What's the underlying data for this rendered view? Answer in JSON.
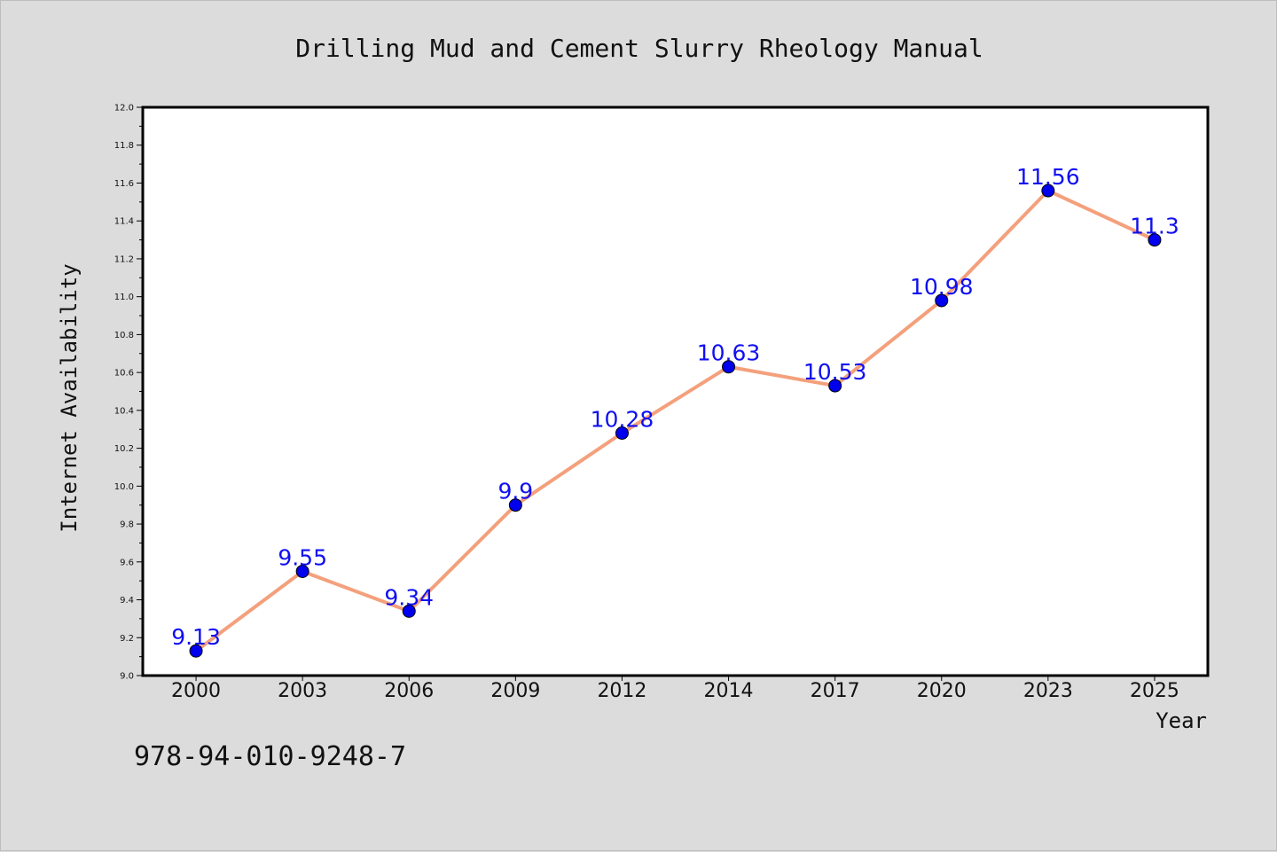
{
  "chart_data": {
    "type": "line",
    "title": "Drilling Mud and Cement Slurry Rheology Manual",
    "xlabel": "Year",
    "ylabel": "Internet Availability",
    "categories": [
      "2000",
      "2003",
      "2006",
      "2009",
      "2012",
      "2014",
      "2017",
      "2020",
      "2023",
      "2025"
    ],
    "series": [
      {
        "values": [
          9.13,
          9.55,
          9.34,
          9.9,
          10.28,
          10.63,
          10.53,
          10.98,
          11.56,
          11.3
        ]
      }
    ],
    "data_labels": [
      "9.13",
      "9.55",
      "9.34",
      "9.9",
      "10.28",
      "10.63",
      "10.53",
      "10.98",
      "11.56",
      "11.3"
    ],
    "ylim": [
      9.0,
      12.0
    ],
    "yticks": [
      "9.0",
      "9.2",
      "9.4",
      "9.6",
      "9.8",
      "10.0",
      "10.2",
      "10.4",
      "10.6",
      "10.8",
      "11.0",
      "11.2",
      "11.4",
      "11.6",
      "11.8",
      "12.0"
    ],
    "grid": false,
    "legend": "none",
    "colors": {
      "line": "#f4a07c",
      "marker": "#0000ee",
      "data_label": "#1010f0",
      "plot_background": "#ffffff",
      "page_background": "#dcdcdc"
    }
  },
  "footer": {
    "code": "978-94-010-9248-7"
  }
}
